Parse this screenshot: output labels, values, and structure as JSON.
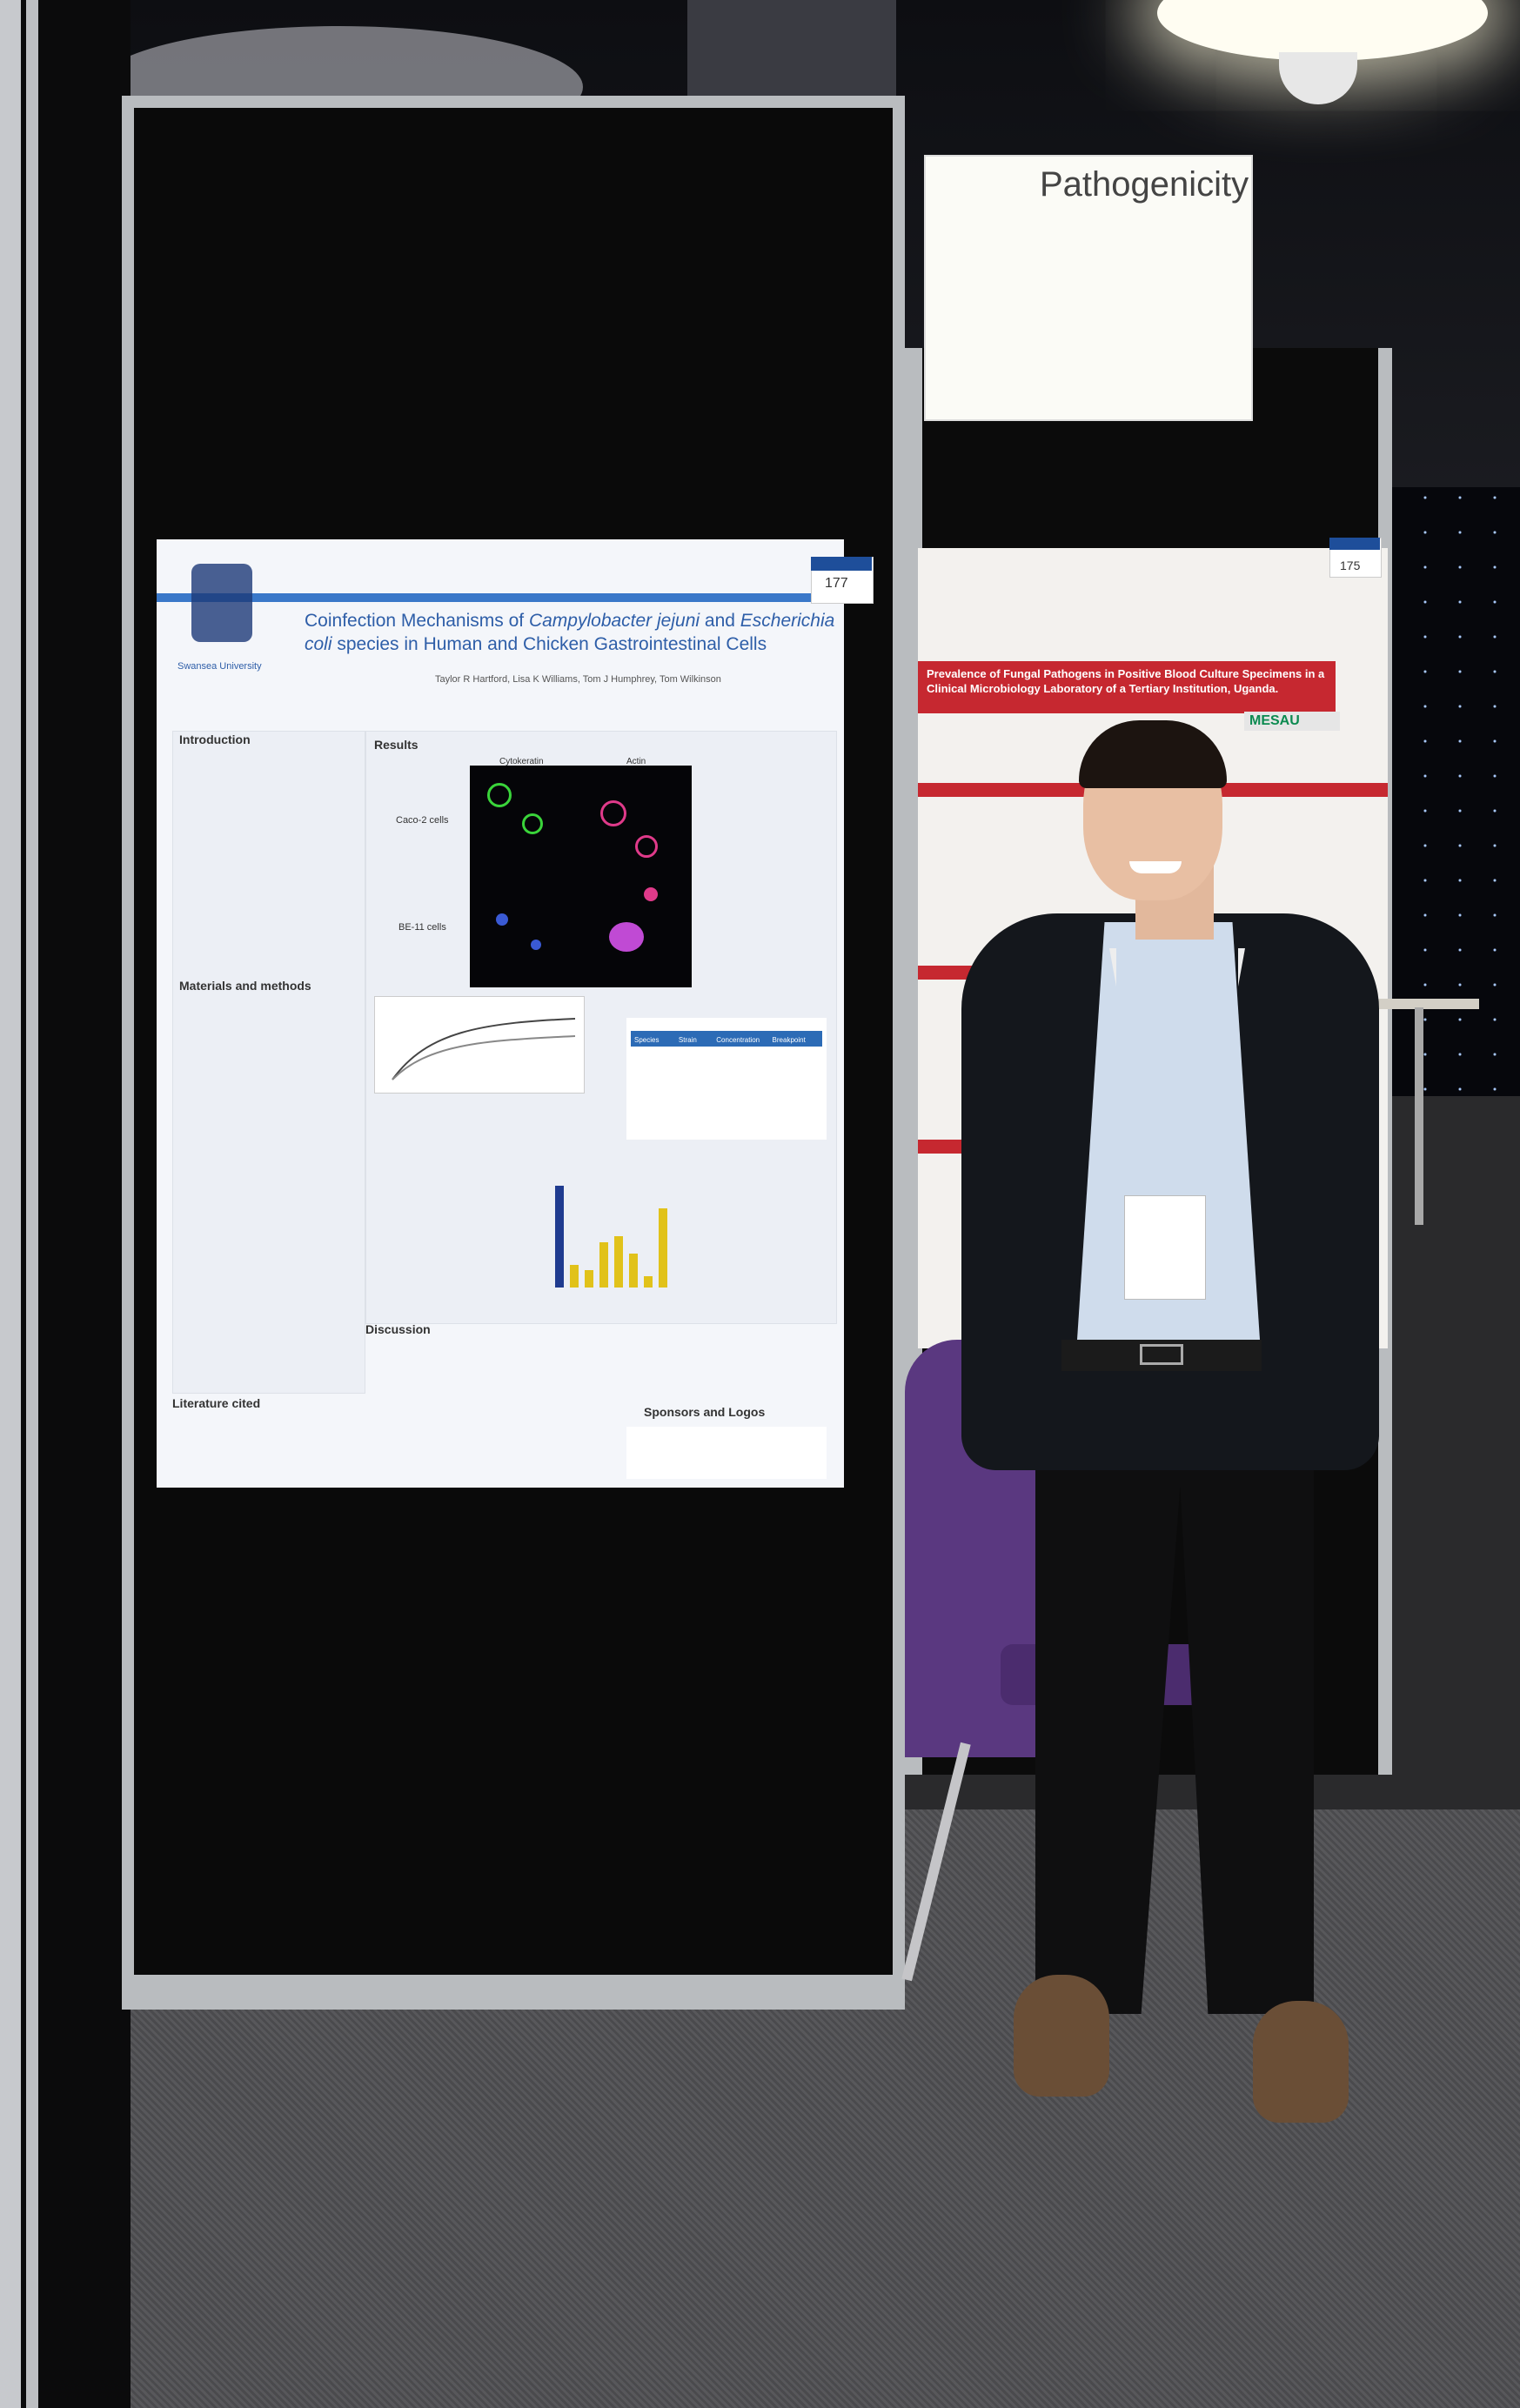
{
  "topic_sign": {
    "label": "Pathogenicity"
  },
  "main_poster": {
    "number": "177",
    "title_plain_1": "Coinfection Mechanisms of ",
    "title_italic_1": "Campylobacter jejuni",
    "title_plain_2": " and ",
    "title_italic_2": "Escherichia coli",
    "title_plain_3": " species in Human and Chicken Gastrointestinal Cells",
    "authors": "Taylor R Hartford, Lisa K Williams, Tom J Humphrey, Tom Wilkinson",
    "affiliation": "Swansea University",
    "sections": {
      "introduction": "Introduction",
      "results": "Results",
      "methods": "Materials and methods",
      "discussion": "Discussion",
      "literature": "Literature cited",
      "sponsors": "Sponsors and Logos"
    },
    "micrograph": {
      "col_1": "Cytokeratin",
      "col_2": "Actin",
      "row_1": "Caco-2 cells",
      "row_2": "BE-11 cells"
    },
    "table": {
      "headers": [
        "Species",
        "Strain",
        "Concentration",
        "Breakpoint"
      ]
    },
    "bars": [
      0.9,
      0.2,
      0.15,
      0.4,
      0.45,
      0.3,
      0.1,
      0.7
    ]
  },
  "right_poster": {
    "number": "175",
    "title": "Prevalence of Fungal Pathogens in Positive Blood Culture Specimens in a Clinical Microbiology Laboratory of a Tertiary Institution, Uganda.",
    "logo": "MESAU"
  }
}
